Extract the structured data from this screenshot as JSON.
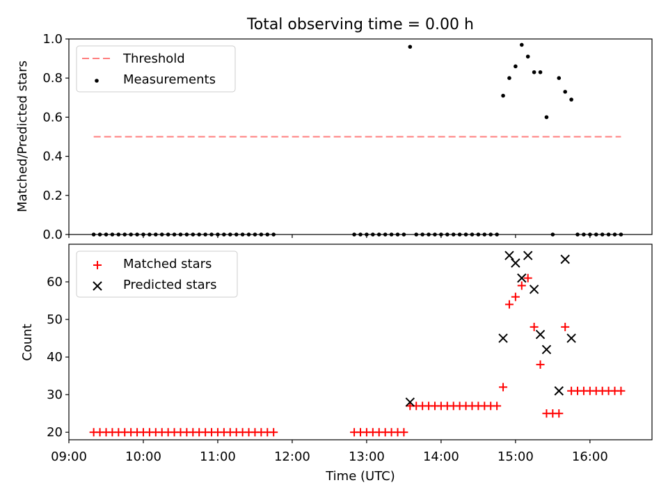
{
  "title": "Total observing time = 0.00 h",
  "colors": {
    "threshold": "#ff7f7f",
    "measurement": "#000000",
    "matched": "#ff0000",
    "predicted": "#000000"
  },
  "chart_data": [
    {
      "type": "scatter",
      "title": "Total observing time = 0.00 h",
      "xlabel": "",
      "ylabel": "Matched/Predicted stars",
      "xlim": [
        "09:00",
        "16:50"
      ],
      "ylim": [
        0,
        1.0
      ],
      "yticks": [
        "0.0",
        "0.2",
        "0.4",
        "0.6",
        "0.8",
        "1.0"
      ],
      "grid": false,
      "legend_position": "top-left",
      "series": [
        {
          "name": "Threshold",
          "style": "dashed-line",
          "points": [
            [
              "09:20",
              0.5
            ],
            [
              "16:25",
              0.5
            ]
          ]
        },
        {
          "name": "Measurements",
          "style": "dot",
          "points": [
            [
              "09:20",
              0
            ],
            [
              "09:25",
              0
            ],
            [
              "09:30",
              0
            ],
            [
              "09:35",
              0
            ],
            [
              "09:40",
              0
            ],
            [
              "09:45",
              0
            ],
            [
              "09:50",
              0
            ],
            [
              "09:55",
              0
            ],
            [
              "10:00",
              0
            ],
            [
              "10:05",
              0
            ],
            [
              "10:10",
              0
            ],
            [
              "10:15",
              0
            ],
            [
              "10:20",
              0
            ],
            [
              "10:25",
              0
            ],
            [
              "10:30",
              0
            ],
            [
              "10:35",
              0
            ],
            [
              "10:40",
              0
            ],
            [
              "10:45",
              0
            ],
            [
              "10:50",
              0
            ],
            [
              "10:55",
              0
            ],
            [
              "11:00",
              0
            ],
            [
              "11:05",
              0
            ],
            [
              "11:10",
              0
            ],
            [
              "11:15",
              0
            ],
            [
              "11:20",
              0
            ],
            [
              "11:25",
              0
            ],
            [
              "11:30",
              0
            ],
            [
              "11:35",
              0
            ],
            [
              "11:40",
              0
            ],
            [
              "11:45",
              0
            ],
            [
              "12:50",
              0
            ],
            [
              "12:55",
              0
            ],
            [
              "13:00",
              0
            ],
            [
              "13:05",
              0
            ],
            [
              "13:10",
              0
            ],
            [
              "13:15",
              0
            ],
            [
              "13:20",
              0
            ],
            [
              "13:25",
              0
            ],
            [
              "13:30",
              0
            ],
            [
              "13:35",
              0.96
            ],
            [
              "13:40",
              0
            ],
            [
              "13:45",
              0
            ],
            [
              "13:50",
              0
            ],
            [
              "13:55",
              0
            ],
            [
              "14:00",
              0
            ],
            [
              "14:05",
              0
            ],
            [
              "14:10",
              0
            ],
            [
              "14:15",
              0
            ],
            [
              "14:20",
              0
            ],
            [
              "14:25",
              0
            ],
            [
              "14:30",
              0
            ],
            [
              "14:35",
              0
            ],
            [
              "14:40",
              0
            ],
            [
              "14:45",
              0
            ],
            [
              "14:50",
              0.71
            ],
            [
              "14:55",
              0.8
            ],
            [
              "15:00",
              0.86
            ],
            [
              "15:05",
              0.97
            ],
            [
              "15:10",
              0.91
            ],
            [
              "15:15",
              0.83
            ],
            [
              "15:20",
              0.83
            ],
            [
              "15:25",
              0.6
            ],
            [
              "15:30",
              0
            ],
            [
              "15:35",
              0.8
            ],
            [
              "15:40",
              0.73
            ],
            [
              "15:45",
              0.69
            ],
            [
              "15:50",
              0
            ],
            [
              "15:55",
              0
            ],
            [
              "16:00",
              0
            ],
            [
              "16:05",
              0
            ],
            [
              "16:10",
              0
            ],
            [
              "16:15",
              0
            ],
            [
              "16:20",
              0
            ],
            [
              "16:25",
              0
            ]
          ]
        }
      ]
    },
    {
      "type": "scatter",
      "xlabel": "Time (UTC)",
      "ylabel": "Count",
      "xlim": [
        "09:00",
        "16:50"
      ],
      "ylim": [
        18,
        70
      ],
      "xticks": [
        "09:00",
        "10:00",
        "11:00",
        "12:00",
        "13:00",
        "14:00",
        "15:00",
        "16:00"
      ],
      "yticks": [
        "20",
        "30",
        "40",
        "50",
        "60"
      ],
      "grid": false,
      "legend_position": "top-left",
      "series": [
        {
          "name": "Matched stars",
          "style": "plus",
          "points": [
            [
              "09:20",
              20
            ],
            [
              "09:25",
              20
            ],
            [
              "09:30",
              20
            ],
            [
              "09:35",
              20
            ],
            [
              "09:40",
              20
            ],
            [
              "09:45",
              20
            ],
            [
              "09:50",
              20
            ],
            [
              "09:55",
              20
            ],
            [
              "10:00",
              20
            ],
            [
              "10:05",
              20
            ],
            [
              "10:10",
              20
            ],
            [
              "10:15",
              20
            ],
            [
              "10:20",
              20
            ],
            [
              "10:25",
              20
            ],
            [
              "10:30",
              20
            ],
            [
              "10:35",
              20
            ],
            [
              "10:40",
              20
            ],
            [
              "10:45",
              20
            ],
            [
              "10:50",
              20
            ],
            [
              "10:55",
              20
            ],
            [
              "11:00",
              20
            ],
            [
              "11:05",
              20
            ],
            [
              "11:10",
              20
            ],
            [
              "11:15",
              20
            ],
            [
              "11:20",
              20
            ],
            [
              "11:25",
              20
            ],
            [
              "11:30",
              20
            ],
            [
              "11:35",
              20
            ],
            [
              "11:40",
              20
            ],
            [
              "11:45",
              20
            ],
            [
              "12:50",
              20
            ],
            [
              "12:55",
              20
            ],
            [
              "13:00",
              20
            ],
            [
              "13:05",
              20
            ],
            [
              "13:10",
              20
            ],
            [
              "13:15",
              20
            ],
            [
              "13:20",
              20
            ],
            [
              "13:25",
              20
            ],
            [
              "13:30",
              20
            ],
            [
              "13:35",
              27
            ],
            [
              "13:40",
              27
            ],
            [
              "13:45",
              27
            ],
            [
              "13:50",
              27
            ],
            [
              "13:55",
              27
            ],
            [
              "14:00",
              27
            ],
            [
              "14:05",
              27
            ],
            [
              "14:10",
              27
            ],
            [
              "14:15",
              27
            ],
            [
              "14:20",
              27
            ],
            [
              "14:25",
              27
            ],
            [
              "14:30",
              27
            ],
            [
              "14:35",
              27
            ],
            [
              "14:40",
              27
            ],
            [
              "14:45",
              27
            ],
            [
              "14:50",
              32
            ],
            [
              "14:55",
              54
            ],
            [
              "15:00",
              56
            ],
            [
              "15:05",
              59
            ],
            [
              "15:10",
              61
            ],
            [
              "15:15",
              48
            ],
            [
              "15:20",
              38
            ],
            [
              "15:25",
              25
            ],
            [
              "15:30",
              25
            ],
            [
              "15:35",
              25
            ],
            [
              "15:40",
              48
            ],
            [
              "15:45",
              31
            ],
            [
              "15:50",
              31
            ],
            [
              "15:55",
              31
            ],
            [
              "16:00",
              31
            ],
            [
              "16:05",
              31
            ],
            [
              "16:10",
              31
            ],
            [
              "16:15",
              31
            ],
            [
              "16:20",
              31
            ],
            [
              "16:25",
              31
            ]
          ]
        },
        {
          "name": "Predicted stars",
          "style": "x",
          "points": [
            [
              "13:35",
              28
            ],
            [
              "14:50",
              45
            ],
            [
              "14:55",
              67
            ],
            [
              "15:00",
              65
            ],
            [
              "15:05",
              61
            ],
            [
              "15:10",
              67
            ],
            [
              "15:15",
              58
            ],
            [
              "15:20",
              46
            ],
            [
              "15:25",
              42
            ],
            [
              "15:35",
              31
            ],
            [
              "15:40",
              66
            ],
            [
              "15:45",
              45
            ]
          ]
        }
      ]
    }
  ]
}
